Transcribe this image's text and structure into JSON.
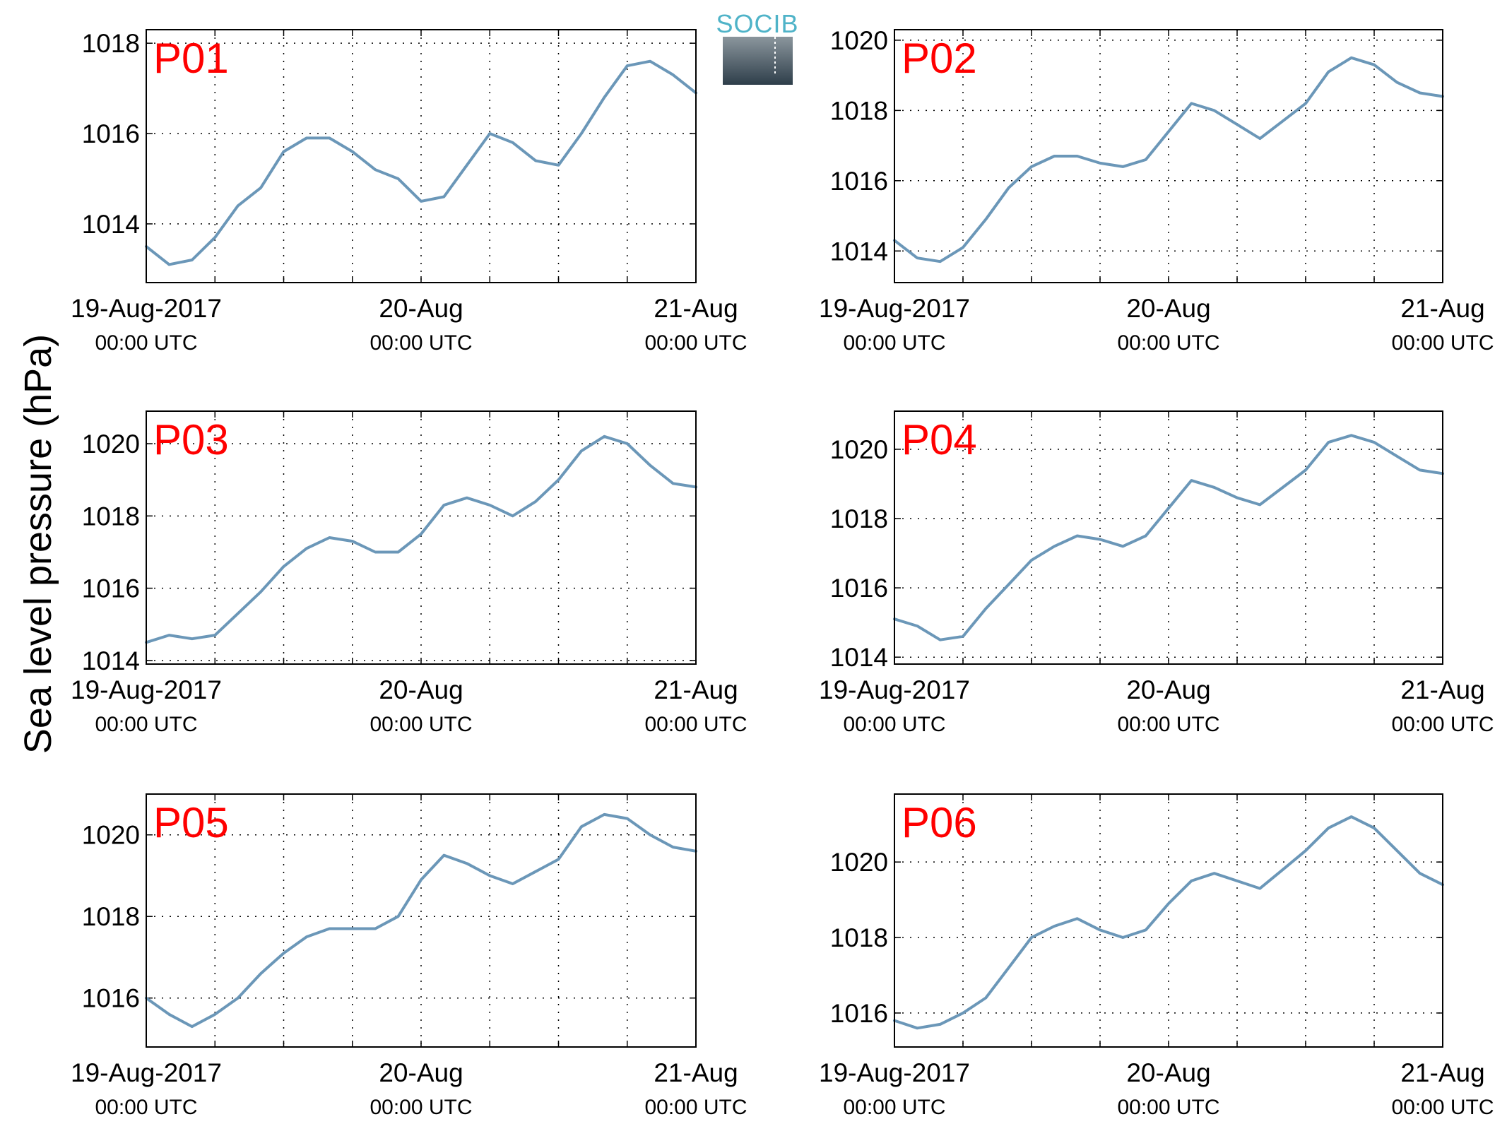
{
  "figure": {
    "ylabel": "Sea level pressure (hPa)",
    "logo_text": "SOCIB",
    "line_color": "#6b97b8",
    "label_color": "#ff0000"
  },
  "chart_data": [
    {
      "type": "line",
      "title": "P01",
      "x_ticks": [
        {
          "main": "19-Aug-2017",
          "sub": "00:00 UTC"
        },
        {
          "main": "20-Aug",
          "sub": "00:00 UTC"
        },
        {
          "main": "21-Aug",
          "sub": "00:00 UTC"
        }
      ],
      "x_hours": [
        0,
        2,
        4,
        6,
        8,
        10,
        12,
        14,
        16,
        18,
        20,
        22,
        24,
        26,
        28,
        30,
        32,
        34,
        36,
        38,
        40,
        42,
        44,
        46,
        48
      ],
      "y_ticks": [
        1014,
        1016,
        1018
      ],
      "ylim": [
        1012.7,
        1018.3
      ],
      "series": [
        {
          "values": [
            1013.5,
            1013.1,
            1013.2,
            1013.7,
            1014.4,
            1014.8,
            1015.6,
            1015.9,
            1015.9,
            1015.6,
            1015.2,
            1015.0,
            1014.5,
            1014.6,
            1015.3,
            1016.0,
            1015.8,
            1015.4,
            1015.3,
            1016.0,
            1016.8,
            1017.5,
            1017.6,
            1017.3,
            1016.9
          ]
        }
      ]
    },
    {
      "type": "line",
      "title": "P02",
      "x_ticks": [
        {
          "main": "19-Aug-2017",
          "sub": "00:00 UTC"
        },
        {
          "main": "20-Aug",
          "sub": "00:00 UTC"
        },
        {
          "main": "21-Aug",
          "sub": "00:00 UTC"
        }
      ],
      "x_hours": [
        0,
        2,
        4,
        6,
        8,
        10,
        12,
        14,
        16,
        18,
        20,
        22,
        24,
        26,
        28,
        30,
        32,
        34,
        36,
        38,
        40,
        42,
        44,
        46,
        48
      ],
      "y_ticks": [
        1014,
        1016,
        1018,
        1020
      ],
      "ylim": [
        1013.1,
        1020.3
      ],
      "series": [
        {
          "values": [
            1014.3,
            1013.8,
            1013.7,
            1014.1,
            1014.9,
            1015.8,
            1016.4,
            1016.7,
            1016.7,
            1016.5,
            1016.4,
            1016.6,
            1017.4,
            1018.2,
            1018.0,
            1017.6,
            1017.2,
            1017.7,
            1018.2,
            1019.1,
            1019.5,
            1019.3,
            1018.8,
            1018.5,
            1018.4
          ]
        }
      ]
    },
    {
      "type": "line",
      "title": "P03",
      "x_ticks": [
        {
          "main": "19-Aug-2017",
          "sub": "00:00 UTC"
        },
        {
          "main": "20-Aug",
          "sub": "00:00 UTC"
        },
        {
          "main": "21-Aug",
          "sub": "00:00 UTC"
        }
      ],
      "x_hours": [
        0,
        2,
        4,
        6,
        8,
        10,
        12,
        14,
        16,
        18,
        20,
        22,
        24,
        26,
        28,
        30,
        32,
        34,
        36,
        38,
        40,
        42,
        44,
        46,
        48
      ],
      "y_ticks": [
        1014,
        1016,
        1018,
        1020
      ],
      "ylim": [
        1013.9,
        1020.9
      ],
      "series": [
        {
          "values": [
            1014.5,
            1014.7,
            1014.6,
            1014.7,
            1015.3,
            1015.9,
            1016.6,
            1017.1,
            1017.4,
            1017.3,
            1017.0,
            1017.0,
            1017.5,
            1018.3,
            1018.5,
            1018.3,
            1018.0,
            1018.4,
            1019.0,
            1019.8,
            1020.2,
            1020.0,
            1019.4,
            1018.9,
            1018.8
          ]
        }
      ]
    },
    {
      "type": "line",
      "title": "P04",
      "x_ticks": [
        {
          "main": "19-Aug-2017",
          "sub": "00:00 UTC"
        },
        {
          "main": "20-Aug",
          "sub": "00:00 UTC"
        },
        {
          "main": "21-Aug",
          "sub": "00:00 UTC"
        }
      ],
      "x_hours": [
        0,
        2,
        4,
        6,
        8,
        10,
        12,
        14,
        16,
        18,
        20,
        22,
        24,
        26,
        28,
        30,
        32,
        34,
        36,
        38,
        40,
        42,
        44,
        46,
        48
      ],
      "y_ticks": [
        1014,
        1016,
        1018,
        1020
      ],
      "ylim": [
        1013.8,
        1021.1
      ],
      "series": [
        {
          "values": [
            1015.1,
            1014.9,
            1014.5,
            1014.6,
            1015.4,
            1016.1,
            1016.8,
            1017.2,
            1017.5,
            1017.4,
            1017.2,
            1017.5,
            1018.3,
            1019.1,
            1018.9,
            1018.6,
            1018.4,
            1018.9,
            1019.4,
            1020.2,
            1020.4,
            1020.2,
            1019.8,
            1019.4,
            1019.3
          ]
        }
      ]
    },
    {
      "type": "line",
      "title": "P05",
      "x_ticks": [
        {
          "main": "19-Aug-2017",
          "sub": "00:00 UTC"
        },
        {
          "main": "20-Aug",
          "sub": "00:00 UTC"
        },
        {
          "main": "21-Aug",
          "sub": "00:00 UTC"
        }
      ],
      "x_hours": [
        0,
        2,
        4,
        6,
        8,
        10,
        12,
        14,
        16,
        18,
        20,
        22,
        24,
        26,
        28,
        30,
        32,
        34,
        36,
        38,
        40,
        42,
        44,
        46,
        48
      ],
      "y_ticks": [
        1016,
        1018,
        1020
      ],
      "ylim": [
        1014.8,
        1021.0
      ],
      "series": [
        {
          "values": [
            1016.0,
            1015.6,
            1015.3,
            1015.6,
            1016.0,
            1016.6,
            1017.1,
            1017.5,
            1017.7,
            1017.7,
            1017.7,
            1018.0,
            1018.9,
            1019.5,
            1019.3,
            1019.0,
            1018.8,
            1019.1,
            1019.4,
            1020.2,
            1020.5,
            1020.4,
            1020.0,
            1019.7,
            1019.6
          ]
        }
      ]
    },
    {
      "type": "line",
      "title": "P06",
      "x_ticks": [
        {
          "main": "19-Aug-2017",
          "sub": "00:00 UTC"
        },
        {
          "main": "20-Aug",
          "sub": "00:00 UTC"
        },
        {
          "main": "21-Aug",
          "sub": "00:00 UTC"
        }
      ],
      "x_hours": [
        0,
        2,
        4,
        6,
        8,
        10,
        12,
        14,
        16,
        18,
        20,
        22,
        24,
        26,
        28,
        30,
        32,
        34,
        36,
        38,
        40,
        42,
        44,
        46,
        48
      ],
      "y_ticks": [
        1016,
        1018,
        1020
      ],
      "ylim": [
        1015.1,
        1021.8
      ],
      "series": [
        {
          "values": [
            1015.8,
            1015.6,
            1015.7,
            1016.0,
            1016.4,
            1017.2,
            1018.0,
            1018.3,
            1018.5,
            1018.2,
            1018.0,
            1018.2,
            1018.9,
            1019.5,
            1019.7,
            1019.5,
            1019.3,
            1019.8,
            1020.3,
            1020.9,
            1021.2,
            1020.9,
            1020.3,
            1019.7,
            1019.4
          ]
        }
      ]
    }
  ]
}
